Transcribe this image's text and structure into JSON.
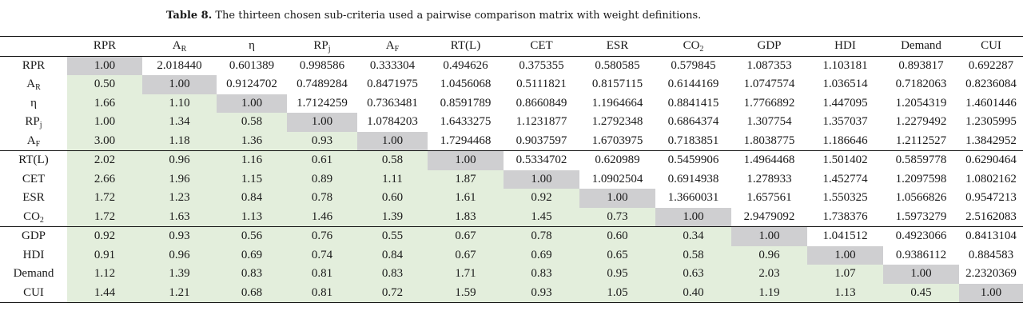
{
  "caption": {
    "label": "Table 8.",
    "text": "The thirteen chosen sub-criteria used a pairwise comparison matrix with weight definitions."
  },
  "colors": {
    "diagonal": "#cfcfd1",
    "lower_triangle": "#e3eedc"
  },
  "headers": [
    {
      "base": "",
      "sub": ""
    },
    {
      "base": "RPR",
      "sub": ""
    },
    {
      "base": "A",
      "sub": "R"
    },
    {
      "base": "η",
      "sub": ""
    },
    {
      "base": "RP",
      "sub": "j"
    },
    {
      "base": "A",
      "sub": "F"
    },
    {
      "base": "RT(L)",
      "sub": ""
    },
    {
      "base": "CET",
      "sub": ""
    },
    {
      "base": "ESR",
      "sub": ""
    },
    {
      "base": "CO",
      "sub": "2"
    },
    {
      "base": "GDP",
      "sub": ""
    },
    {
      "base": "HDI",
      "sub": ""
    },
    {
      "base": "Demand",
      "sub": ""
    },
    {
      "base": "CUI",
      "sub": ""
    }
  ],
  "rows": [
    {
      "base": "RPR",
      "sub": "",
      "cells": [
        "1.00",
        "2.018440",
        "0.601389",
        "0.998586",
        "0.333304",
        "0.494626",
        "0.375355",
        "0.580585",
        "0.579845",
        "1.087353",
        "1.103181",
        "0.893817",
        "0.692287"
      ]
    },
    {
      "base": "A",
      "sub": "R",
      "cells": [
        "0.50",
        "1.00",
        "0.9124702",
        "0.7489284",
        "0.8471975",
        "1.0456068",
        "0.5111821",
        "0.8157115",
        "0.6144169",
        "1.0747574",
        "1.036514",
        "0.7182063",
        "0.8236084"
      ]
    },
    {
      "base": "η",
      "sub": "",
      "cells": [
        "1.66",
        "1.10",
        "1.00",
        "1.7124259",
        "0.7363481",
        "0.8591789",
        "0.8660849",
        "1.1964664",
        "0.8841415",
        "1.7766892",
        "1.447095",
        "1.2054319",
        "1.4601446"
      ]
    },
    {
      "base": "RP",
      "sub": "j",
      "cells": [
        "1.00",
        "1.34",
        "0.58",
        "1.00",
        "1.0784203",
        "1.6433275",
        "1.1231877",
        "1.2792348",
        "0.6864374",
        "1.307754",
        "1.357037",
        "1.2279492",
        "1.2305995"
      ]
    },
    {
      "base": "A",
      "sub": "F",
      "cells": [
        "3.00",
        "1.18",
        "1.36",
        "0.93",
        "1.00",
        "1.7294468",
        "0.9037597",
        "1.6703975",
        "0.7183851",
        "1.8038775",
        "1.186646",
        "1.2112527",
        "1.3842952"
      ]
    },
    {
      "base": "RT(L)",
      "sub": "",
      "cells": [
        "2.02",
        "0.96",
        "1.16",
        "0.61",
        "0.58",
        "1.00",
        "0.5334702",
        "0.620989",
        "0.5459906",
        "1.4964468",
        "1.501402",
        "0.5859778",
        "0.6290464"
      ]
    },
    {
      "base": "CET",
      "sub": "",
      "cells": [
        "2.66",
        "1.96",
        "1.15",
        "0.89",
        "1.11",
        "1.87",
        "1.00",
        "1.0902504",
        "0.6914938",
        "1.278933",
        "1.452774",
        "1.2097598",
        "1.0802162"
      ]
    },
    {
      "base": "ESR",
      "sub": "",
      "cells": [
        "1.72",
        "1.23",
        "0.84",
        "0.78",
        "0.60",
        "1.61",
        "0.92",
        "1.00",
        "1.3660031",
        "1.657561",
        "1.550325",
        "1.0566826",
        "0.9547213"
      ]
    },
    {
      "base": "CO",
      "sub": "2",
      "cells": [
        "1.72",
        "1.63",
        "1.13",
        "1.46",
        "1.39",
        "1.83",
        "1.45",
        "0.73",
        "1.00",
        "2.9479092",
        "1.738376",
        "1.5973279",
        "2.5162083"
      ]
    },
    {
      "base": "GDP",
      "sub": "",
      "cells": [
        "0.92",
        "0.93",
        "0.56",
        "0.76",
        "0.55",
        "0.67",
        "0.78",
        "0.60",
        "0.34",
        "1.00",
        "1.041512",
        "0.4923066",
        "0.8413104"
      ]
    },
    {
      "base": "HDI",
      "sub": "",
      "cells": [
        "0.91",
        "0.96",
        "0.69",
        "0.74",
        "0.84",
        "0.67",
        "0.69",
        "0.65",
        "0.58",
        "0.96",
        "1.00",
        "0.9386112",
        "0.884583"
      ]
    },
    {
      "base": "Demand",
      "sub": "",
      "cells": [
        "1.12",
        "1.39",
        "0.83",
        "0.81",
        "0.83",
        "1.71",
        "0.83",
        "0.95",
        "0.63",
        "2.03",
        "1.07",
        "1.00",
        "2.2320369"
      ]
    },
    {
      "base": "CUI",
      "sub": "",
      "cells": [
        "1.44",
        "1.21",
        "0.68",
        "0.81",
        "0.72",
        "1.59",
        "0.93",
        "1.05",
        "0.40",
        "1.19",
        "1.13",
        "0.45",
        "1.00"
      ]
    }
  ]
}
